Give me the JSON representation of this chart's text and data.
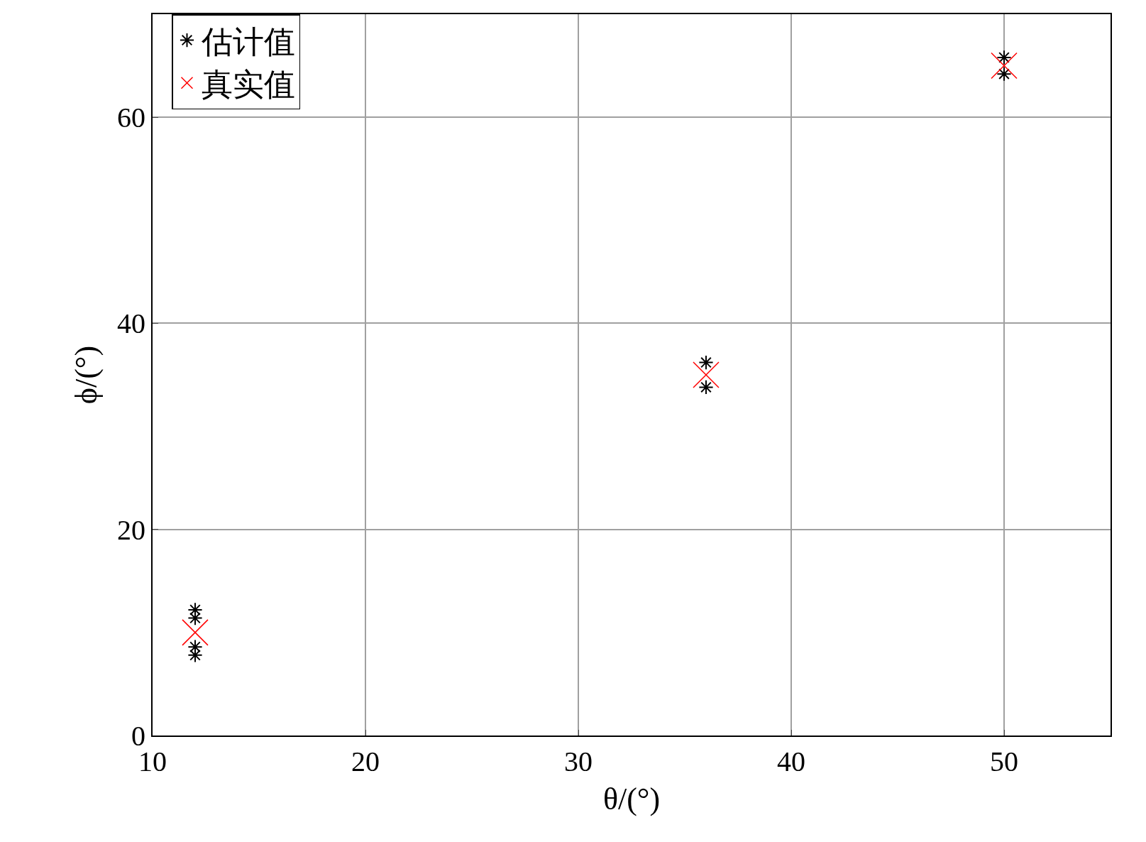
{
  "chart_data": {
    "type": "scatter",
    "xlabel": "θ/(°)",
    "ylabel": "ϕ/(°)",
    "xlim": [
      10,
      55
    ],
    "ylim": [
      0,
      70
    ],
    "xticks": [
      10,
      20,
      30,
      40,
      50
    ],
    "yticks": [
      0,
      20,
      40,
      60
    ],
    "grid": true,
    "legend": "top left",
    "series": [
      {
        "name": "估计值",
        "color": "#000000",
        "marker": "cross",
        "x": [
          12,
          12,
          12,
          12,
          36,
          36,
          50,
          50
        ],
        "values": [
          7.8,
          8.6,
          11.4,
          12.2,
          33.8,
          36.2,
          64.2,
          65.8
        ]
      },
      {
        "name": "真实值",
        "color": "#ff0000",
        "marker": "cross",
        "x": [
          12,
          36,
          50
        ],
        "values": [
          10,
          35,
          65
        ]
      }
    ]
  }
}
